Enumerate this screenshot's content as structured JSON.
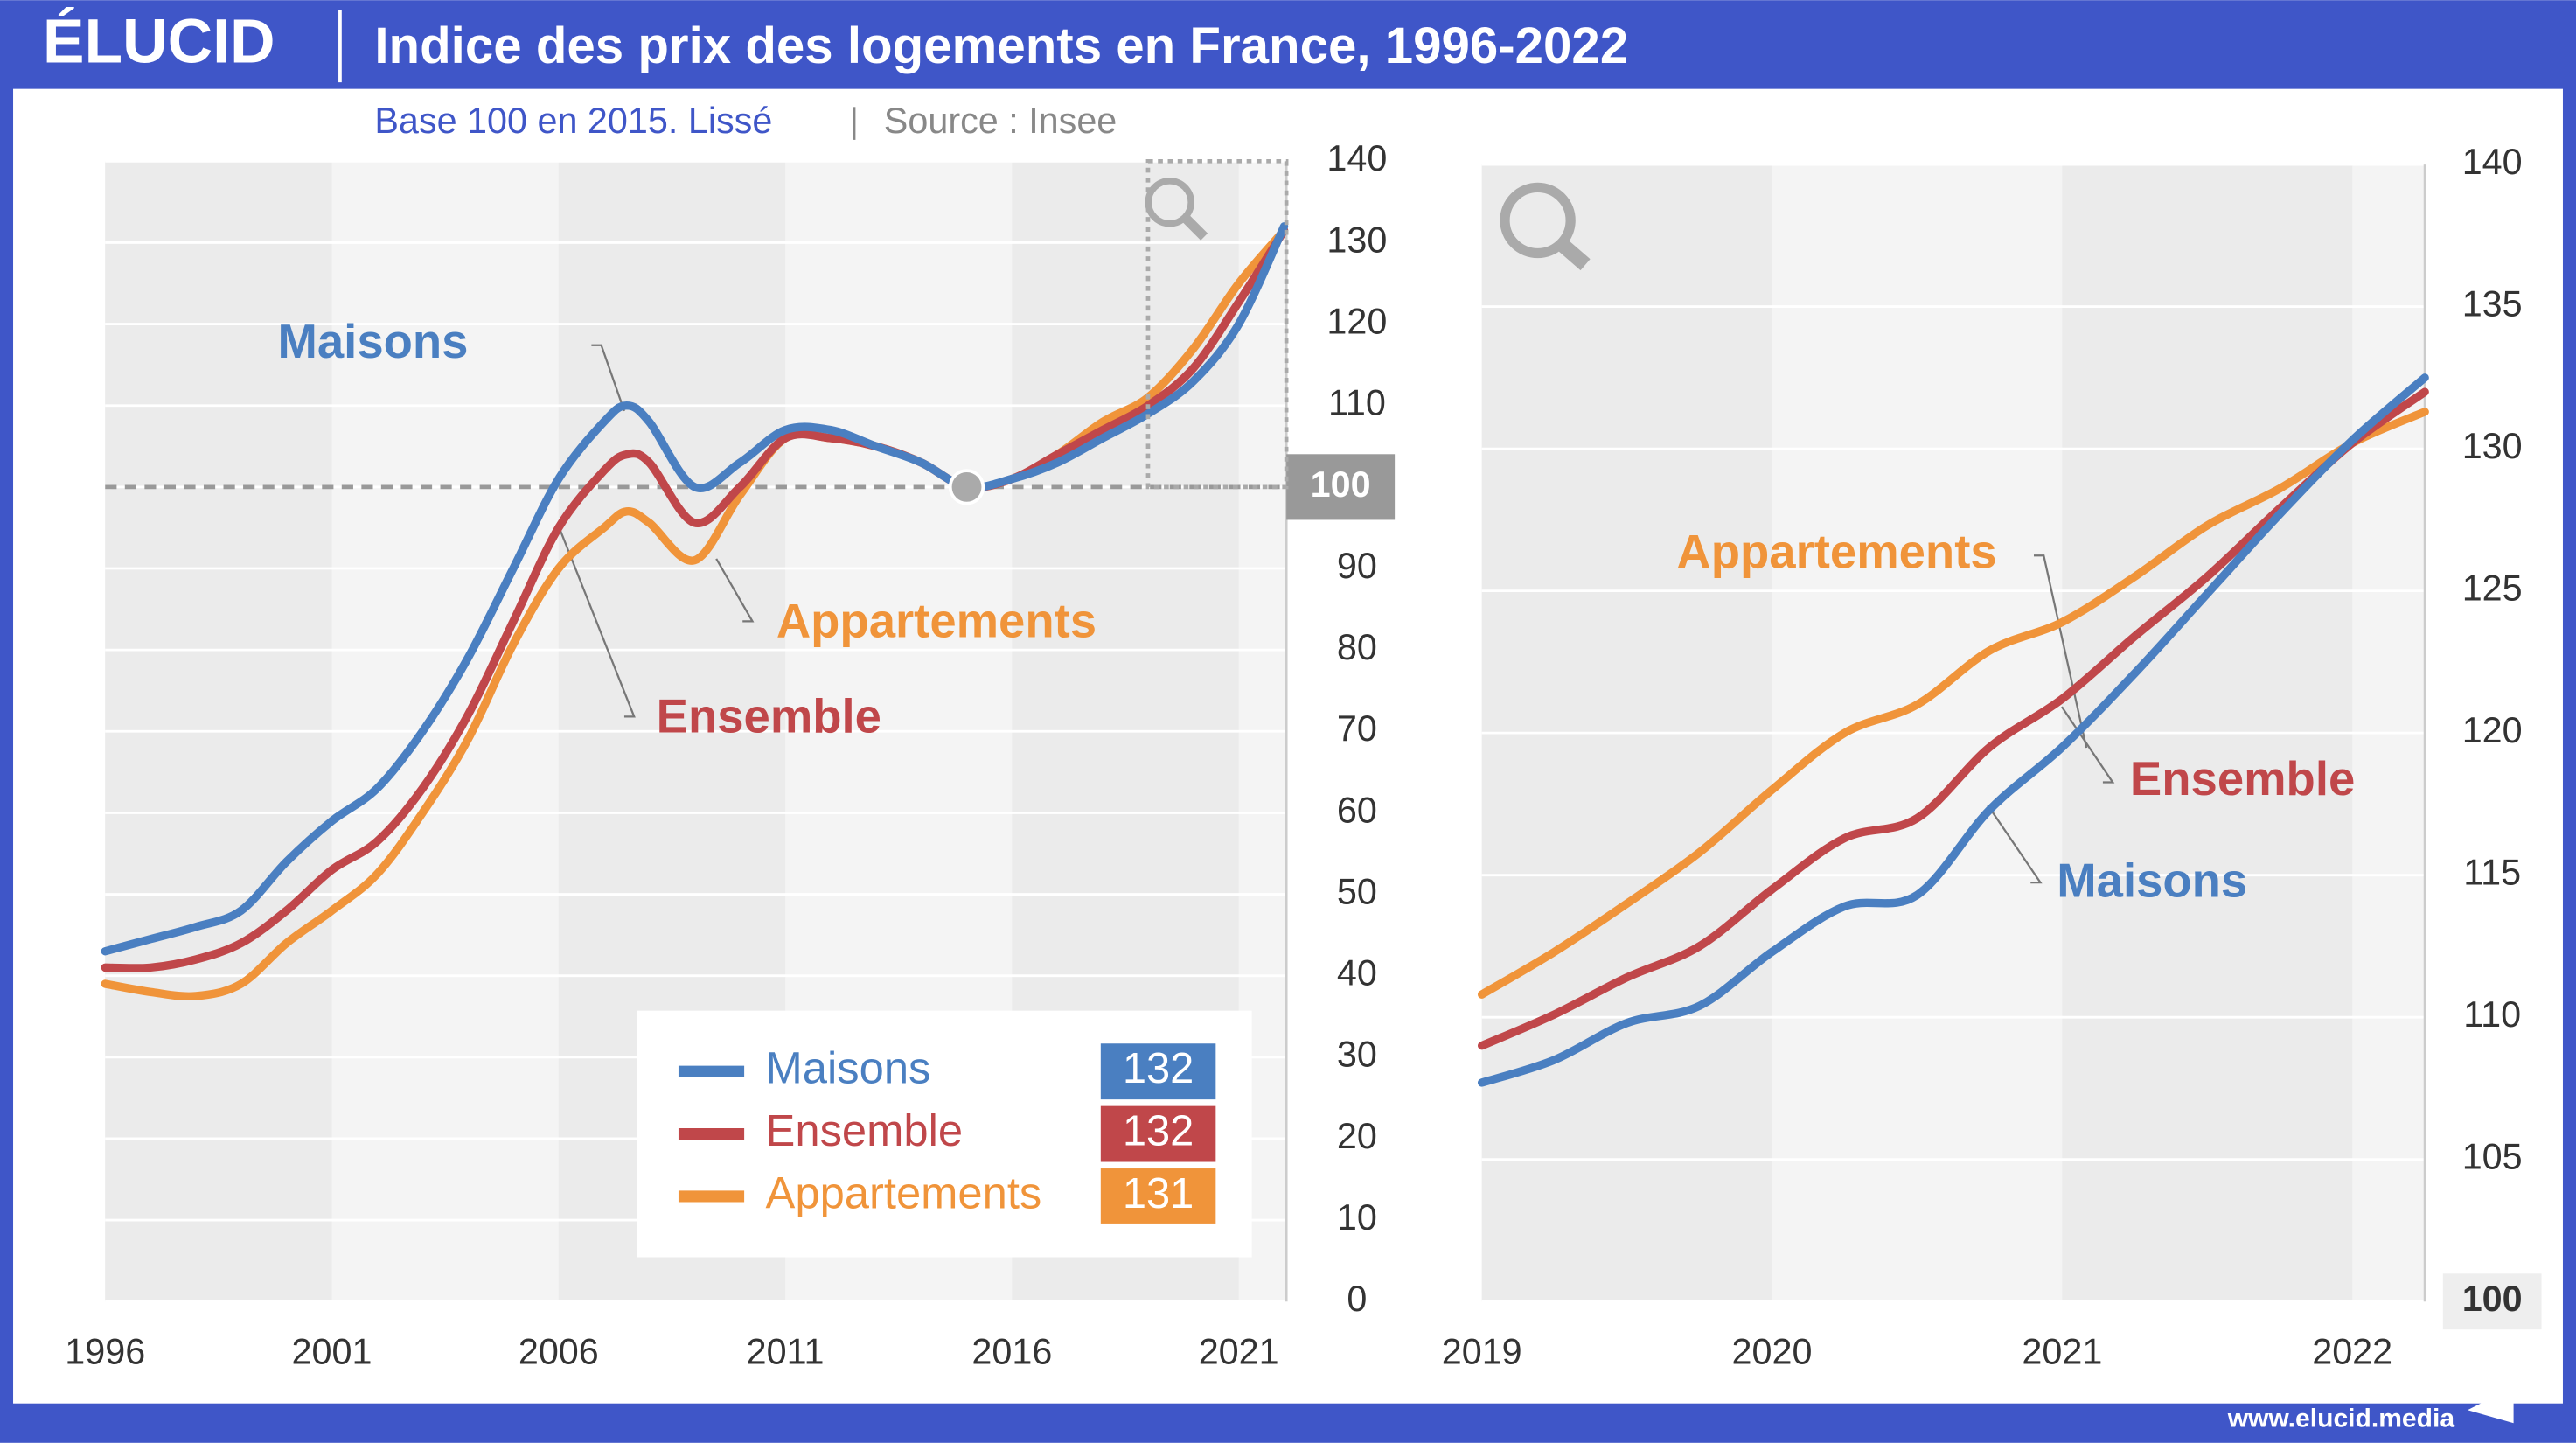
{
  "header": {
    "logo": "ÉLUCID",
    "title": "Indice des prix des logements en France, 1996-2022",
    "subtitle": "Base 100 en 2015. Lissé",
    "source": "Source : Insee",
    "footer": "www.elucid.media"
  },
  "chart_data": [
    {
      "type": "line",
      "x": [
        1996,
        1997,
        1998,
        1999,
        2000,
        2001,
        2002,
        2003,
        2004,
        2005,
        2006,
        2007,
        2007.5,
        2008,
        2009,
        2010,
        2011,
        2012,
        2013,
        2014,
        2015,
        2016,
        2017,
        2018,
        2019,
        2020,
        2021,
        2022
      ],
      "series": [
        {
          "name": "Maisons",
          "color": "#4a7fc1",
          "legend_value": 132,
          "values": [
            43,
            44.5,
            46,
            48,
            54,
            59,
            63,
            70,
            79,
            90,
            101,
            108,
            110,
            108,
            100,
            103,
            107,
            107,
            105,
            103,
            100,
            101,
            103,
            106,
            109,
            113,
            120,
            132
          ]
        },
        {
          "name": "Ensemble",
          "color": "#c0474a",
          "legend_value": 132,
          "values": [
            41,
            41,
            42,
            44,
            48,
            53,
            56.5,
            63,
            72,
            83.5,
            95,
            102,
            104,
            103,
            95.6,
            100,
            106,
            106,
            105,
            103,
            100,
            101,
            104,
            107,
            110,
            114.6,
            122.7,
            131.5
          ]
        },
        {
          "name": "Appartements",
          "color": "#f0943a",
          "legend_value": 131,
          "values": [
            39,
            38,
            37.5,
            39,
            44,
            48,
            52.5,
            60,
            69,
            80.7,
            90,
            95,
            97,
            95.6,
            91,
            99,
            106,
            106,
            105,
            103,
            100,
            101,
            104,
            108,
            111,
            117,
            125,
            131.5
          ]
        }
      ],
      "xlim": [
        1996,
        2022.05
      ],
      "xticks": [
        1996,
        2001,
        2006,
        2011,
        2016,
        2021
      ],
      "ylim": [
        0,
        140
      ],
      "yticks": [
        0,
        10,
        20,
        30,
        40,
        50,
        60,
        70,
        80,
        90,
        100,
        110,
        120,
        130,
        140
      ],
      "reference": {
        "x": 2015,
        "value": 100
      }
    },
    {
      "type": "line",
      "x": [
        2019,
        2019.25,
        2019.5,
        2019.75,
        2020,
        2020.25,
        2020.5,
        2020.75,
        2021,
        2021.25,
        2021.5,
        2021.75,
        2022,
        2022.25
      ],
      "series": [
        {
          "name": "Maisons",
          "color": "#4a7fc1",
          "values": [
            107.7,
            108.5,
            109.8,
            110.4,
            112.3,
            113.9,
            114.3,
            117.3,
            119.5,
            122.1,
            124.9,
            127.7,
            130.3,
            132.5
          ]
        },
        {
          "name": "Ensemble",
          "color": "#c0474a",
          "values": [
            109,
            110.1,
            111.4,
            112.5,
            114.5,
            116.3,
            117,
            119.5,
            121.2,
            123.4,
            125.5,
            127.9,
            130.2,
            132
          ]
        },
        {
          "name": "Appartements",
          "color": "#f0943a",
          "values": [
            110.8,
            112.3,
            114,
            115.8,
            118,
            120,
            121,
            122.9,
            123.9,
            125.5,
            127.3,
            128.6,
            130.2,
            131.3
          ]
        }
      ],
      "xlim": [
        2019,
        2022.25
      ],
      "xticks": [
        2019,
        2020,
        2021,
        2022
      ],
      "ylim": [
        100,
        140
      ],
      "yticks": [
        100,
        105,
        110,
        115,
        120,
        125,
        130,
        135,
        140
      ]
    }
  ]
}
